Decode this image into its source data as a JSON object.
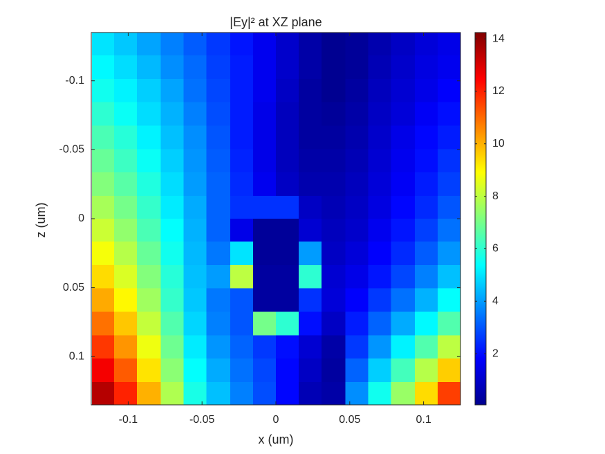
{
  "chart_data": {
    "type": "heatmap",
    "title": "|Ey|² at XZ plane",
    "x_label": "x (um)",
    "y_label": "z (um)",
    "colormap": "jet",
    "x": [
      -0.117,
      -0.102,
      -0.086,
      -0.07,
      -0.055,
      -0.039,
      -0.023,
      -0.008,
      0.008,
      0.023,
      0.039,
      0.055,
      0.07,
      0.086,
      0.102,
      0.117
    ],
    "y": [
      -0.127,
      -0.11,
      -0.093,
      -0.076,
      -0.059,
      -0.042,
      -0.025,
      -0.008,
      0.008,
      0.025,
      0.042,
      0.059,
      0.076,
      0.093,
      0.11,
      0.127
    ],
    "values": [
      [
        5.0,
        4.6,
        4.1,
        3.6,
        3.1,
        2.6,
        2.1,
        1.6,
        1.1,
        0.6,
        0.3,
        0.4,
        0.7,
        1.0,
        1.3,
        1.5
      ],
      [
        5.3,
        4.9,
        4.4,
        3.8,
        3.3,
        2.7,
        2.2,
        1.6,
        1.1,
        0.6,
        0.3,
        0.4,
        0.8,
        1.1,
        1.4,
        1.6
      ],
      [
        5.6,
        5.2,
        4.7,
        4.1,
        3.4,
        2.8,
        2.2,
        1.6,
        1.0,
        0.5,
        0.3,
        0.5,
        0.9,
        1.2,
        1.5,
        1.8
      ],
      [
        6.0,
        5.5,
        4.9,
        4.3,
        3.6,
        2.9,
        2.2,
        1.5,
        0.9,
        0.5,
        0.4,
        0.6,
        1.0,
        1.3,
        1.7,
        2.0
      ],
      [
        6.4,
        5.9,
        5.2,
        4.5,
        3.8,
        3.0,
        2.2,
        1.5,
        0.9,
        0.5,
        0.5,
        0.7,
        1.1,
        1.5,
        1.9,
        2.2
      ],
      [
        6.8,
        6.2,
        5.5,
        4.7,
        3.9,
        3.1,
        2.3,
        1.5,
        0.9,
        0.6,
        0.6,
        0.8,
        1.2,
        1.6,
        2.0,
        2.5
      ],
      [
        7.2,
        6.6,
        5.8,
        4.9,
        4.0,
        3.2,
        2.4,
        1.6,
        1.0,
        0.7,
        0.7,
        0.9,
        1.3,
        1.7,
        2.2,
        2.7
      ],
      [
        7.7,
        7.0,
        6.1,
        5.1,
        4.2,
        3.2,
        2.5,
        2.5,
        2.5,
        1.0,
        0.8,
        1.0,
        1.4,
        1.9,
        2.4,
        3.0
      ],
      [
        8.2,
        7.4,
        6.4,
        5.4,
        4.3,
        3.2,
        1.5,
        0.4,
        0.4,
        1.2,
        0.9,
        1.1,
        1.6,
        2.1,
        2.7,
        3.4
      ],
      [
        8.8,
        7.9,
        6.8,
        5.6,
        4.4,
        3.5,
        5.0,
        0.4,
        0.4,
        4.0,
        1.0,
        1.3,
        1.8,
        2.4,
        3.1,
        3.9
      ],
      [
        9.4,
        8.4,
        7.2,
        5.9,
        4.5,
        4.0,
        8.0,
        0.5,
        0.5,
        6.0,
        1.2,
        1.5,
        2.1,
        2.8,
        3.6,
        4.5
      ],
      [
        10.1,
        9.0,
        7.6,
        6.1,
        4.6,
        3.5,
        3.0,
        0.5,
        0.5,
        2.5,
        1.3,
        1.8,
        2.6,
        3.4,
        4.3,
        5.4
      ],
      [
        10.9,
        9.7,
        8.1,
        6.5,
        4.8,
        3.6,
        3.0,
        7.0,
        6.0,
        2.0,
        1.0,
        2.2,
        3.2,
        4.2,
        5.3,
        6.5
      ],
      [
        11.7,
        10.4,
        8.7,
        6.9,
        5.1,
        3.9,
        3.2,
        2.6,
        2.0,
        1.2,
        0.6,
        2.6,
        3.9,
        5.2,
        6.5,
        8.0
      ],
      [
        12.6,
        11.2,
        9.3,
        7.3,
        5.4,
        4.2,
        3.4,
        2.8,
        1.9,
        1.0,
        0.5,
        3.2,
        4.7,
        6.3,
        7.9,
        9.6
      ],
      [
        13.5,
        12.0,
        10.0,
        7.8,
        5.7,
        4.5,
        3.6,
        2.9,
        1.9,
        0.8,
        0.6,
        3.8,
        5.6,
        7.5,
        9.4,
        11.6
      ]
    ],
    "xlim": [
      -0.125,
      0.125
    ],
    "xticks": [
      -0.1,
      -0.05,
      0,
      0.05,
      0.1
    ],
    "ylim": [
      -0.135,
      0.135
    ],
    "yticks": [
      -0.1,
      -0.05,
      0,
      0.05,
      0.1
    ],
    "clim": [
      0.05,
      14.24
    ],
    "cticks": [
      2,
      4,
      6,
      8,
      10,
      12,
      14
    ]
  }
}
